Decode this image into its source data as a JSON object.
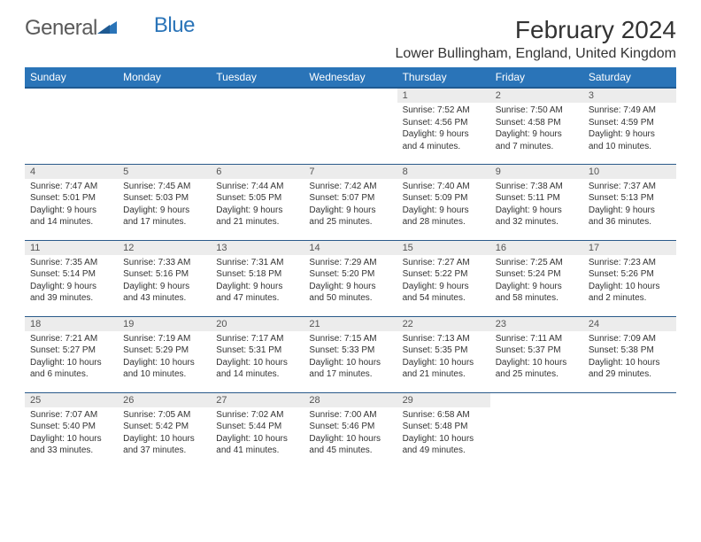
{
  "logo": {
    "word1": "General",
    "word2": "Blue"
  },
  "title": "February 2024",
  "location": "Lower Bullingham, England, United Kingdom",
  "colors": {
    "header_bg": "#2a74b8",
    "header_border": "#1f5a92",
    "row_border": "#2a5a8a",
    "daynum_bg": "#ececec",
    "text": "#333333"
  },
  "weekdays": [
    "Sunday",
    "Monday",
    "Tuesday",
    "Wednesday",
    "Thursday",
    "Friday",
    "Saturday"
  ],
  "first_weekday_index": 4,
  "days": [
    {
      "n": 1,
      "sunrise": "7:52 AM",
      "sunset": "4:56 PM",
      "daylight": "9 hours and 4 minutes."
    },
    {
      "n": 2,
      "sunrise": "7:50 AM",
      "sunset": "4:58 PM",
      "daylight": "9 hours and 7 minutes."
    },
    {
      "n": 3,
      "sunrise": "7:49 AM",
      "sunset": "4:59 PM",
      "daylight": "9 hours and 10 minutes."
    },
    {
      "n": 4,
      "sunrise": "7:47 AM",
      "sunset": "5:01 PM",
      "daylight": "9 hours and 14 minutes."
    },
    {
      "n": 5,
      "sunrise": "7:45 AM",
      "sunset": "5:03 PM",
      "daylight": "9 hours and 17 minutes."
    },
    {
      "n": 6,
      "sunrise": "7:44 AM",
      "sunset": "5:05 PM",
      "daylight": "9 hours and 21 minutes."
    },
    {
      "n": 7,
      "sunrise": "7:42 AM",
      "sunset": "5:07 PM",
      "daylight": "9 hours and 25 minutes."
    },
    {
      "n": 8,
      "sunrise": "7:40 AM",
      "sunset": "5:09 PM",
      "daylight": "9 hours and 28 minutes."
    },
    {
      "n": 9,
      "sunrise": "7:38 AM",
      "sunset": "5:11 PM",
      "daylight": "9 hours and 32 minutes."
    },
    {
      "n": 10,
      "sunrise": "7:37 AM",
      "sunset": "5:13 PM",
      "daylight": "9 hours and 36 minutes."
    },
    {
      "n": 11,
      "sunrise": "7:35 AM",
      "sunset": "5:14 PM",
      "daylight": "9 hours and 39 minutes."
    },
    {
      "n": 12,
      "sunrise": "7:33 AM",
      "sunset": "5:16 PM",
      "daylight": "9 hours and 43 minutes."
    },
    {
      "n": 13,
      "sunrise": "7:31 AM",
      "sunset": "5:18 PM",
      "daylight": "9 hours and 47 minutes."
    },
    {
      "n": 14,
      "sunrise": "7:29 AM",
      "sunset": "5:20 PM",
      "daylight": "9 hours and 50 minutes."
    },
    {
      "n": 15,
      "sunrise": "7:27 AM",
      "sunset": "5:22 PM",
      "daylight": "9 hours and 54 minutes."
    },
    {
      "n": 16,
      "sunrise": "7:25 AM",
      "sunset": "5:24 PM",
      "daylight": "9 hours and 58 minutes."
    },
    {
      "n": 17,
      "sunrise": "7:23 AM",
      "sunset": "5:26 PM",
      "daylight": "10 hours and 2 minutes."
    },
    {
      "n": 18,
      "sunrise": "7:21 AM",
      "sunset": "5:27 PM",
      "daylight": "10 hours and 6 minutes."
    },
    {
      "n": 19,
      "sunrise": "7:19 AM",
      "sunset": "5:29 PM",
      "daylight": "10 hours and 10 minutes."
    },
    {
      "n": 20,
      "sunrise": "7:17 AM",
      "sunset": "5:31 PM",
      "daylight": "10 hours and 14 minutes."
    },
    {
      "n": 21,
      "sunrise": "7:15 AM",
      "sunset": "5:33 PM",
      "daylight": "10 hours and 17 minutes."
    },
    {
      "n": 22,
      "sunrise": "7:13 AM",
      "sunset": "5:35 PM",
      "daylight": "10 hours and 21 minutes."
    },
    {
      "n": 23,
      "sunrise": "7:11 AM",
      "sunset": "5:37 PM",
      "daylight": "10 hours and 25 minutes."
    },
    {
      "n": 24,
      "sunrise": "7:09 AM",
      "sunset": "5:38 PM",
      "daylight": "10 hours and 29 minutes."
    },
    {
      "n": 25,
      "sunrise": "7:07 AM",
      "sunset": "5:40 PM",
      "daylight": "10 hours and 33 minutes."
    },
    {
      "n": 26,
      "sunrise": "7:05 AM",
      "sunset": "5:42 PM",
      "daylight": "10 hours and 37 minutes."
    },
    {
      "n": 27,
      "sunrise": "7:02 AM",
      "sunset": "5:44 PM",
      "daylight": "10 hours and 41 minutes."
    },
    {
      "n": 28,
      "sunrise": "7:00 AM",
      "sunset": "5:46 PM",
      "daylight": "10 hours and 45 minutes."
    },
    {
      "n": 29,
      "sunrise": "6:58 AM",
      "sunset": "5:48 PM",
      "daylight": "10 hours and 49 minutes."
    }
  ],
  "labels": {
    "sunrise": "Sunrise:",
    "sunset": "Sunset:",
    "daylight": "Daylight:"
  }
}
